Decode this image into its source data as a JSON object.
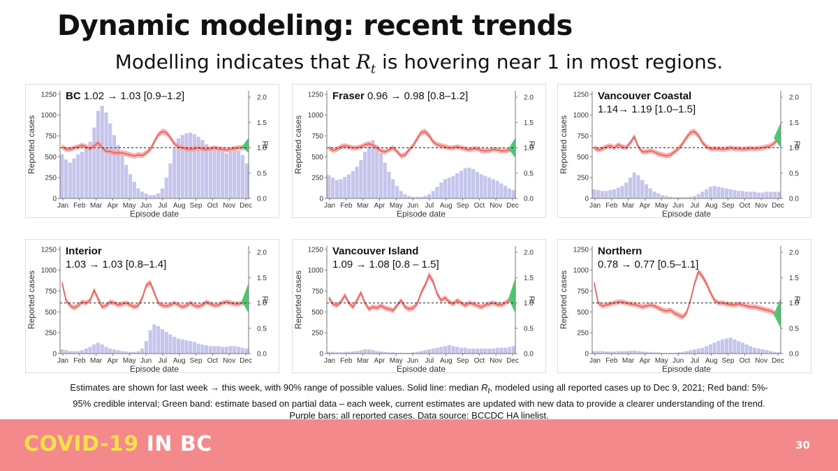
{
  "slide": {
    "title": "Dynamic modeling: recent trends",
    "subtitle_before": "Modelling indicates that ",
    "subtitle_rt": "R",
    "subtitle_rt_sub": "t",
    "subtitle_after": " is hovering near 1 in most regions.",
    "footnote_line1_a": "Estimates are shown for last week → this week, with 90% range of possible values. Solid line: median ",
    "footnote_rt": "R",
    "footnote_rt_sub": "t",
    "footnote_line1_b": ", modeled using all reported cases up to Dec 9, 2021; Red band: 5%-",
    "footnote_line2": "95% credible interval; Green band: estimate based on partial data – each week, current estimates are updated with new data to provide a clearer understanding of the trend.",
    "footnote_line3": "Purple bars: all reported cases. Data source: BCCDC HA linelist.",
    "brand_part1": "COVID-19",
    "brand_part2": "IN BC",
    "page_number": "30"
  },
  "colors": {
    "bars": "#c5c5ec",
    "rt_line": "#e8625e",
    "rt_band": "#f4a3a0",
    "green_band": "#4cc96f",
    "footer": "#f4898b"
  },
  "chart_data": [
    {
      "type": "bar+line",
      "region": "BC",
      "label_values": "1.02 → 1.03 [0.9–1.2]",
      "xlabel": "Episode date",
      "ylabel": "Reported cases",
      "y2label": "Rt",
      "categories": [
        "Jan",
        "Feb",
        "Mar",
        "Apr",
        "May",
        "Jun",
        "Jul",
        "Aug",
        "Sep",
        "Oct",
        "Nov",
        "Dec"
      ],
      "ylim": [
        0,
        1250
      ],
      "y2lim": [
        0,
        2.0
      ],
      "yticks": [
        "0",
        "250",
        "500",
        "750",
        "1000",
        "1250"
      ],
      "y2ticks": [
        "0.0",
        "0.5",
        "1.0",
        "1.5",
        "2.0"
      ],
      "reference_line": 1.0,
      "cases_weekly": [
        530,
        470,
        430,
        480,
        530,
        560,
        610,
        680,
        850,
        1050,
        1110,
        1030,
        900,
        760,
        640,
        520,
        400,
        290,
        200,
        120,
        80,
        60,
        40,
        40,
        60,
        120,
        250,
        420,
        600,
        720,
        760,
        780,
        790,
        770,
        740,
        700,
        650,
        620,
        600,
        580,
        560,
        540,
        560,
        590,
        570,
        520,
        420
      ],
      "rt_weekly": [
        1.02,
        0.97,
        0.97,
        1.0,
        1.02,
        1.05,
        1.02,
        0.98,
        1.04,
        1.1,
        1.0,
        0.93,
        0.93,
        0.9,
        0.9,
        0.9,
        0.88,
        0.86,
        0.84,
        0.86,
        0.85,
        0.9,
        0.97,
        1.12,
        1.26,
        1.32,
        1.3,
        1.2,
        1.08,
        1.02,
        1.0,
        0.98,
        0.97,
        0.98,
        1.0,
        0.98,
        0.97,
        0.98,
        1.0,
        0.98,
        0.97,
        0.96,
        0.97,
        0.99,
        1.0,
        1.0,
        1.02
      ],
      "green_band_last": [
        0.9,
        1.2
      ]
    },
    {
      "type": "bar+line",
      "region": "Fraser",
      "label_values": "0.96 → 0.98 [0.8–1.2]",
      "xlabel": "Episode date",
      "ylabel": "Reported cases",
      "y2label": "Rt",
      "categories": [
        "Jan",
        "Feb",
        "Mar",
        "Apr",
        "May",
        "Jun",
        "Jul",
        "Aug",
        "Sep",
        "Oct",
        "Nov",
        "Dec"
      ],
      "ylim": [
        0,
        1250
      ],
      "y2lim": [
        0,
        2.0
      ],
      "yticks": [
        "0",
        "250",
        "500",
        "750",
        "1000",
        "1250"
      ],
      "y2ticks": [
        "0.0",
        "0.5",
        "1.0",
        "1.5",
        "2.0"
      ],
      "reference_line": 1.0,
      "cases_weekly": [
        280,
        250,
        220,
        230,
        260,
        290,
        330,
        380,
        460,
        560,
        660,
        700,
        640,
        540,
        430,
        320,
        230,
        150,
        90,
        50,
        30,
        20,
        20,
        20,
        30,
        50,
        90,
        140,
        190,
        230,
        250,
        270,
        300,
        330,
        360,
        370,
        350,
        320,
        290,
        270,
        250,
        230,
        210,
        180,
        150,
        120,
        100
      ],
      "rt_weekly": [
        1.0,
        0.95,
        0.97,
        1.02,
        1.04,
        1.02,
        1.0,
        1.0,
        1.02,
        1.06,
        1.08,
        1.05,
        1.0,
        0.94,
        0.92,
        0.96,
        1.0,
        0.93,
        0.84,
        0.86,
        0.96,
        1.04,
        1.18,
        1.3,
        1.32,
        1.24,
        1.12,
        1.06,
        1.04,
        1.02,
        1.0,
        1.0,
        1.02,
        1.0,
        0.98,
        0.96,
        0.98,
        0.98,
        0.95,
        0.94,
        0.95,
        0.97,
        0.96,
        0.94,
        0.94,
        0.96,
        0.98
      ],
      "green_band_last": [
        0.8,
        1.2
      ]
    },
    {
      "type": "bar+line",
      "region": "Vancouver Coastal",
      "label_values": "1.14→ 1.19 [1.0–1.5]",
      "xlabel": "Episode date",
      "ylabel": "Reported cases",
      "y2label": "Rt",
      "categories": [
        "Jan",
        "Feb",
        "Mar",
        "Apr",
        "May",
        "Jun",
        "Jul",
        "Aug",
        "Sep",
        "Oct",
        "Nov",
        "Dec"
      ],
      "ylim": [
        0,
        1250
      ],
      "y2lim": [
        0,
        2.0
      ],
      "yticks": [
        "0",
        "250",
        "500",
        "750",
        "1000",
        "1250"
      ],
      "y2ticks": [
        "0.0",
        "0.5",
        "1.0",
        "1.5",
        "2.0"
      ],
      "reference_line": 1.0,
      "cases_weekly": [
        110,
        100,
        90,
        90,
        100,
        110,
        130,
        150,
        190,
        250,
        310,
        280,
        220,
        170,
        120,
        80,
        60,
        40,
        30,
        20,
        15,
        15,
        15,
        15,
        20,
        30,
        50,
        80,
        110,
        140,
        150,
        140,
        130,
        120,
        110,
        100,
        90,
        90,
        80,
        80,
        80,
        70,
        70,
        80,
        80,
        80,
        80
      ],
      "rt_weekly": [
        1.0,
        0.96,
        0.98,
        1.02,
        1.04,
        1.0,
        1.06,
        1.02,
        1.0,
        1.1,
        1.22,
        1.02,
        0.92,
        0.92,
        0.94,
        0.92,
        0.88,
        0.86,
        0.84,
        0.86,
        0.92,
        0.98,
        1.08,
        1.2,
        1.3,
        1.32,
        1.24,
        1.1,
        1.02,
        0.98,
        0.98,
        0.98,
        0.97,
        0.98,
        1.0,
        0.98,
        0.98,
        0.97,
        0.98,
        0.99,
        0.98,
        0.99,
        1.0,
        1.02,
        1.04,
        1.1,
        1.19
      ],
      "green_band_last": [
        1.0,
        1.5
      ]
    },
    {
      "type": "bar+line",
      "region": "Interior",
      "label_values": "1.03 → 1.03 [0.8–1.4]",
      "xlabel": "Episode date",
      "ylabel": "Reported cases",
      "y2label": "Rt",
      "categories": [
        "Jan",
        "Feb",
        "Mar",
        "Apr",
        "May",
        "Jun",
        "Jul",
        "Aug",
        "Sep",
        "Oct",
        "Nov",
        "Dec"
      ],
      "ylim": [
        0,
        1250
      ],
      "y2lim": [
        0,
        2.0
      ],
      "yticks": [
        "0",
        "250",
        "500",
        "750",
        "1000",
        "1250"
      ],
      "y2ticks": [
        "0.0",
        "0.5",
        "1.0",
        "1.5",
        "2.0"
      ],
      "reference_line": 1.0,
      "cases_weekly": [
        50,
        40,
        30,
        30,
        30,
        40,
        60,
        80,
        110,
        130,
        110,
        80,
        60,
        50,
        40,
        30,
        25,
        20,
        20,
        30,
        60,
        150,
        280,
        350,
        330,
        290,
        260,
        230,
        200,
        180,
        170,
        160,
        150,
        140,
        120,
        110,
        100,
        90,
        90,
        90,
        80,
        80,
        90,
        90,
        80,
        70,
        60
      ],
      "rt_weekly": [
        1.4,
        1.05,
        0.95,
        0.9,
        0.95,
        1.02,
        1.0,
        1.05,
        1.25,
        1.08,
        0.92,
        0.95,
        1.02,
        1.0,
        0.96,
        0.98,
        1.0,
        0.96,
        0.92,
        0.95,
        1.1,
        1.35,
        1.4,
        1.2,
        1.0,
        0.95,
        0.94,
        0.96,
        1.0,
        0.96,
        0.92,
        0.95,
        1.0,
        0.95,
        0.93,
        0.96,
        1.02,
        0.98,
        0.95,
        0.96,
        1.0,
        1.02,
        1.0,
        0.98,
        0.98,
        1.0,
        1.03
      ],
      "green_band_last": [
        0.8,
        1.4
      ]
    },
    {
      "type": "bar+line",
      "region": "Vancouver Island",
      "label_values": "1.09 → 1.08 [0.8 – 1.5]",
      "xlabel": "Episode date",
      "ylabel": "Reported cases",
      "y2label": "Rt",
      "categories": [
        "Jan",
        "Feb",
        "Mar",
        "Apr",
        "May",
        "Jun",
        "Jul",
        "Aug",
        "Sep",
        "Oct",
        "Nov",
        "Dec"
      ],
      "ylim": [
        0,
        1250
      ],
      "y2lim": [
        0,
        2.0
      ],
      "yticks": [
        "0",
        "250",
        "500",
        "750",
        "1000",
        "1250"
      ],
      "y2ticks": [
        "0.0",
        "0.5",
        "1.0",
        "1.5",
        "2.0"
      ],
      "reference_line": 1.0,
      "cases_weekly": [
        20,
        20,
        15,
        15,
        20,
        20,
        25,
        30,
        40,
        50,
        50,
        40,
        30,
        25,
        20,
        15,
        15,
        10,
        10,
        10,
        10,
        15,
        20,
        30,
        40,
        50,
        60,
        70,
        80,
        90,
        100,
        90,
        80,
        70,
        70,
        60,
        60,
        60,
        60,
        60,
        60,
        60,
        70,
        70,
        70,
        80,
        90
      ],
      "rt_weekly": [
        1.1,
        0.98,
        0.95,
        1.02,
        1.15,
        1.0,
        0.92,
        1.05,
        1.2,
        1.0,
        0.88,
        0.92,
        0.9,
        0.95,
        0.9,
        0.88,
        0.85,
        0.95,
        1.05,
        0.92,
        0.88,
        0.9,
        0.98,
        1.2,
        1.35,
        1.55,
        1.42,
        1.18,
        1.05,
        1.1,
        1.02,
        0.98,
        1.05,
        1.0,
        0.95,
        1.0,
        0.98,
        0.95,
        0.92,
        0.96,
        0.98,
        1.0,
        0.97,
        0.96,
        1.0,
        1.06,
        1.08
      ],
      "green_band_last": [
        0.8,
        1.5
      ]
    },
    {
      "type": "bar+line",
      "region": "Northern",
      "label_values": "0.78 → 0.77 [0.5–1.1]",
      "xlabel": "Episode date",
      "ylabel": "Reported cases",
      "y2label": "Rt",
      "categories": [
        "Jan",
        "Feb",
        "Mar",
        "Apr",
        "May",
        "Jun",
        "Jul",
        "Aug",
        "Sep",
        "Oct",
        "Nov",
        "Dec"
      ],
      "ylim": [
        0,
        1250
      ],
      "y2lim": [
        0,
        2.0
      ],
      "yticks": [
        "0",
        "250",
        "500",
        "750",
        "1000",
        "1250"
      ],
      "y2ticks": [
        "0.0",
        "0.5",
        "1.0",
        "1.5",
        "2.0"
      ],
      "reference_line": 1.0,
      "cases_weekly": [
        30,
        30,
        30,
        25,
        25,
        25,
        30,
        30,
        30,
        35,
        35,
        30,
        25,
        20,
        20,
        15,
        15,
        10,
        10,
        10,
        10,
        15,
        20,
        30,
        40,
        50,
        60,
        70,
        90,
        110,
        130,
        150,
        170,
        180,
        190,
        170,
        150,
        130,
        110,
        90,
        70,
        60,
        50,
        40,
        30,
        20,
        15
      ],
      "rt_weekly": [
        1.4,
        1.0,
        0.94,
        0.96,
        0.98,
        1.0,
        1.02,
        1.02,
        1.0,
        0.98,
        0.97,
        0.95,
        0.92,
        0.94,
        0.96,
        0.94,
        0.9,
        0.86,
        0.84,
        0.86,
        0.8,
        0.76,
        0.72,
        0.8,
        1.05,
        1.38,
        1.62,
        1.52,
        1.38,
        1.2,
        1.05,
        1.0,
        1.0,
        0.98,
        0.97,
        0.96,
        0.98,
        0.96,
        0.94,
        0.92,
        0.92,
        0.9,
        0.88,
        0.86,
        0.84,
        0.8,
        0.77
      ],
      "green_band_last": [
        0.5,
        1.1
      ]
    }
  ]
}
